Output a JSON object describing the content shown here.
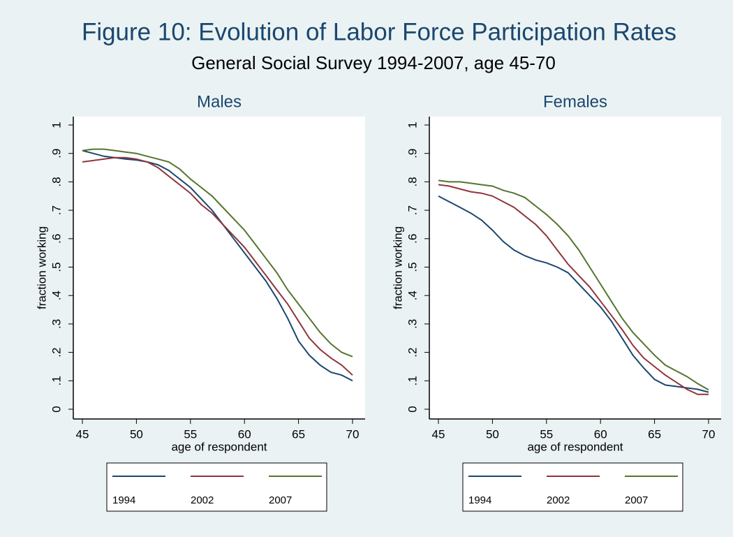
{
  "title": "Figure 10: Evolution of Labor Force Participation Rates",
  "subtitle": "General Social Survey 1994-2007, age 45-70",
  "chart_data": [
    {
      "type": "line",
      "title": "Males",
      "x_label": "age of respondent",
      "y_label": "fraction working",
      "x": [
        45,
        46,
        47,
        48,
        49,
        50,
        51,
        52,
        53,
        54,
        55,
        56,
        57,
        58,
        59,
        60,
        61,
        62,
        63,
        64,
        65,
        66,
        67,
        68,
        69,
        70
      ],
      "series": [
        {
          "name": "1994",
          "color": "#1a476f",
          "values": [
            0.91,
            0.9,
            0.89,
            0.885,
            0.88,
            0.877,
            0.87,
            0.86,
            0.84,
            0.81,
            0.78,
            0.74,
            0.7,
            0.65,
            0.6,
            0.55,
            0.5,
            0.45,
            0.39,
            0.32,
            0.24,
            0.19,
            0.155,
            0.13,
            0.12,
            0.1
          ]
        },
        {
          "name": "2002",
          "color": "#90353b",
          "values": [
            0.87,
            0.875,
            0.88,
            0.885,
            0.885,
            0.88,
            0.87,
            0.85,
            0.82,
            0.79,
            0.76,
            0.72,
            0.69,
            0.65,
            0.61,
            0.57,
            0.52,
            0.47,
            0.42,
            0.37,
            0.31,
            0.25,
            0.21,
            0.18,
            0.155,
            0.12
          ]
        },
        {
          "name": "2007",
          "color": "#55752f",
          "values": [
            0.91,
            0.915,
            0.915,
            0.91,
            0.905,
            0.9,
            0.89,
            0.88,
            0.87,
            0.845,
            0.81,
            0.78,
            0.75,
            0.71,
            0.67,
            0.63,
            0.58,
            0.53,
            0.48,
            0.42,
            0.37,
            0.32,
            0.27,
            0.23,
            0.2,
            0.185
          ]
        }
      ],
      "xlim": [
        45,
        70
      ],
      "xticks": [
        45,
        50,
        55,
        60,
        65,
        70
      ],
      "ylim": [
        0,
        1
      ],
      "yticks": [
        0,
        {
          "value": 0.1,
          "label": ".1"
        },
        {
          "value": 0.2,
          "label": ".2"
        },
        {
          "value": 0.3,
          "label": ".3"
        },
        {
          "value": 0.4,
          "label": ".4"
        },
        {
          "value": 0.5,
          "label": ".5"
        },
        {
          "value": 0.6,
          "label": ".6"
        },
        {
          "value": 0.7,
          "label": ".7"
        },
        {
          "value": 0.8,
          "label": ".8"
        },
        {
          "value": 0.9,
          "label": ".9"
        },
        1
      ],
      "grid": false,
      "legend": "bottom"
    },
    {
      "type": "line",
      "title": "Females",
      "x_label": "age of respondent",
      "y_label": "fraction working",
      "x": [
        45,
        46,
        47,
        48,
        49,
        50,
        51,
        52,
        53,
        54,
        55,
        56,
        57,
        58,
        59,
        60,
        61,
        62,
        63,
        64,
        65,
        66,
        67,
        68,
        69,
        70
      ],
      "series": [
        {
          "name": "1994",
          "color": "#1a476f",
          "values": [
            0.75,
            0.73,
            0.71,
            0.69,
            0.665,
            0.63,
            0.59,
            0.56,
            0.54,
            0.525,
            0.515,
            0.5,
            0.48,
            0.44,
            0.4,
            0.36,
            0.31,
            0.25,
            0.19,
            0.145,
            0.105,
            0.085,
            0.08,
            0.075,
            0.07,
            0.06
          ]
        },
        {
          "name": "2002",
          "color": "#90353b",
          "values": [
            0.79,
            0.785,
            0.775,
            0.765,
            0.76,
            0.75,
            0.73,
            0.71,
            0.68,
            0.65,
            0.61,
            0.56,
            0.51,
            0.47,
            0.43,
            0.38,
            0.33,
            0.28,
            0.225,
            0.18,
            0.15,
            0.12,
            0.095,
            0.07,
            0.052,
            0.052
          ]
        },
        {
          "name": "2007",
          "color": "#55752f",
          "values": [
            0.805,
            0.8,
            0.8,
            0.795,
            0.79,
            0.785,
            0.77,
            0.76,
            0.745,
            0.715,
            0.685,
            0.65,
            0.61,
            0.56,
            0.5,
            0.44,
            0.38,
            0.32,
            0.27,
            0.23,
            0.19,
            0.155,
            0.135,
            0.115,
            0.09,
            0.068
          ]
        }
      ],
      "xlim": [
        45,
        70
      ],
      "xticks": [
        45,
        50,
        55,
        60,
        65,
        70
      ],
      "ylim": [
        0,
        1
      ],
      "yticks": [
        0,
        {
          "value": 0.1,
          "label": ".1"
        },
        {
          "value": 0.2,
          "label": ".2"
        },
        {
          "value": 0.3,
          "label": ".3"
        },
        {
          "value": 0.4,
          "label": ".4"
        },
        {
          "value": 0.5,
          "label": ".5"
        },
        {
          "value": 0.6,
          "label": ".6"
        },
        {
          "value": 0.7,
          "label": ".7"
        },
        {
          "value": 0.8,
          "label": ".8"
        },
        {
          "value": 0.9,
          "label": ".9"
        },
        1
      ],
      "grid": false,
      "legend": "bottom"
    }
  ]
}
